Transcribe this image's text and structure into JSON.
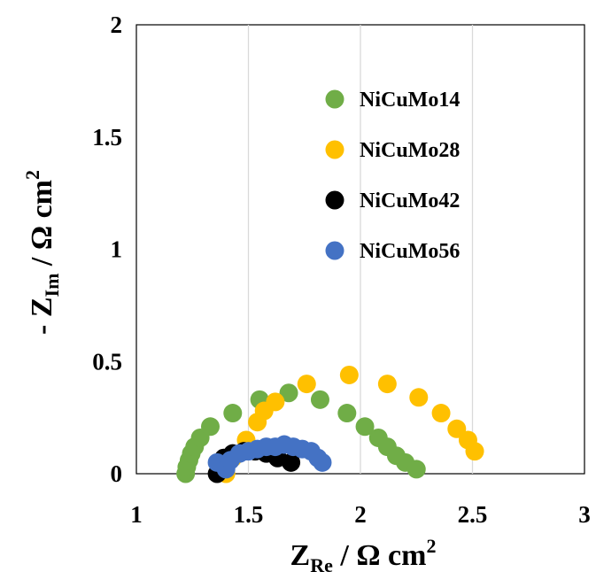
{
  "chart_data": {
    "type": "scatter",
    "title": "",
    "xlabel": "Z_Re / Ω cm²",
    "ylabel": "- Z_Im / Ω cm²",
    "xlabel_parts": {
      "main": "Z",
      "sub": "Re",
      "rest": " / Ω cm",
      "sup": "2"
    },
    "ylabel_parts": {
      "prefix": "- Z",
      "sub": "Im",
      "rest": " / Ω cm",
      "sup": "2"
    },
    "xlim": [
      1,
      3
    ],
    "ylim": [
      0,
      2
    ],
    "xticks": [
      1,
      1.5,
      2,
      2.5,
      3
    ],
    "xtick_labels": [
      "1",
      "1.5",
      "2",
      "2.5",
      "3"
    ],
    "yticks": [
      0,
      0.5,
      1,
      1.5,
      2
    ],
    "ytick_labels": [
      "0",
      "0.5",
      "1",
      "1.5",
      "2"
    ],
    "grid": {
      "x": true,
      "y": false
    },
    "legend_position": "top-right",
    "series": [
      {
        "name": "NiCuMo14",
        "color": "#70AD47",
        "points": [
          [
            1.22,
            0.0
          ],
          [
            1.225,
            0.03
          ],
          [
            1.235,
            0.06
          ],
          [
            1.245,
            0.09
          ],
          [
            1.26,
            0.12
          ],
          [
            1.285,
            0.16
          ],
          [
            1.33,
            0.21
          ],
          [
            1.43,
            0.27
          ],
          [
            1.55,
            0.33
          ],
          [
            1.68,
            0.36
          ],
          [
            1.82,
            0.33
          ],
          [
            1.94,
            0.27
          ],
          [
            2.02,
            0.21
          ],
          [
            2.08,
            0.16
          ],
          [
            2.12,
            0.12
          ],
          [
            2.16,
            0.08
          ],
          [
            2.2,
            0.05
          ],
          [
            2.25,
            0.02
          ]
        ]
      },
      {
        "name": "NiCuMo28",
        "color": "#FFC000",
        "points": [
          [
            1.4,
            0.0
          ],
          [
            1.43,
            0.07
          ],
          [
            1.49,
            0.15
          ],
          [
            1.54,
            0.23
          ],
          [
            1.57,
            0.28
          ],
          [
            1.62,
            0.32
          ],
          [
            1.76,
            0.4
          ],
          [
            1.95,
            0.44
          ],
          [
            2.12,
            0.4
          ],
          [
            2.26,
            0.34
          ],
          [
            2.36,
            0.27
          ],
          [
            2.43,
            0.2
          ],
          [
            2.48,
            0.15
          ],
          [
            2.51,
            0.1
          ]
        ]
      },
      {
        "name": "NiCuMo42",
        "color": "#000000",
        "points": [
          [
            1.36,
            0.0
          ],
          [
            1.37,
            0.04
          ],
          [
            1.39,
            0.07
          ],
          [
            1.43,
            0.09
          ],
          [
            1.48,
            0.1
          ],
          [
            1.53,
            0.1
          ],
          [
            1.58,
            0.09
          ],
          [
            1.63,
            0.07
          ],
          [
            1.69,
            0.05
          ]
        ]
      },
      {
        "name": "NiCuMo56",
        "color": "#4472C4",
        "points": [
          [
            1.36,
            0.05
          ],
          [
            1.4,
            0.02
          ],
          [
            1.42,
            0.06
          ],
          [
            1.46,
            0.09
          ],
          [
            1.5,
            0.1
          ],
          [
            1.54,
            0.11
          ],
          [
            1.58,
            0.12
          ],
          [
            1.62,
            0.12
          ],
          [
            1.66,
            0.13
          ],
          [
            1.7,
            0.12
          ],
          [
            1.74,
            0.11
          ],
          [
            1.78,
            0.1
          ],
          [
            1.81,
            0.07
          ],
          [
            1.83,
            0.05
          ]
        ]
      }
    ]
  }
}
